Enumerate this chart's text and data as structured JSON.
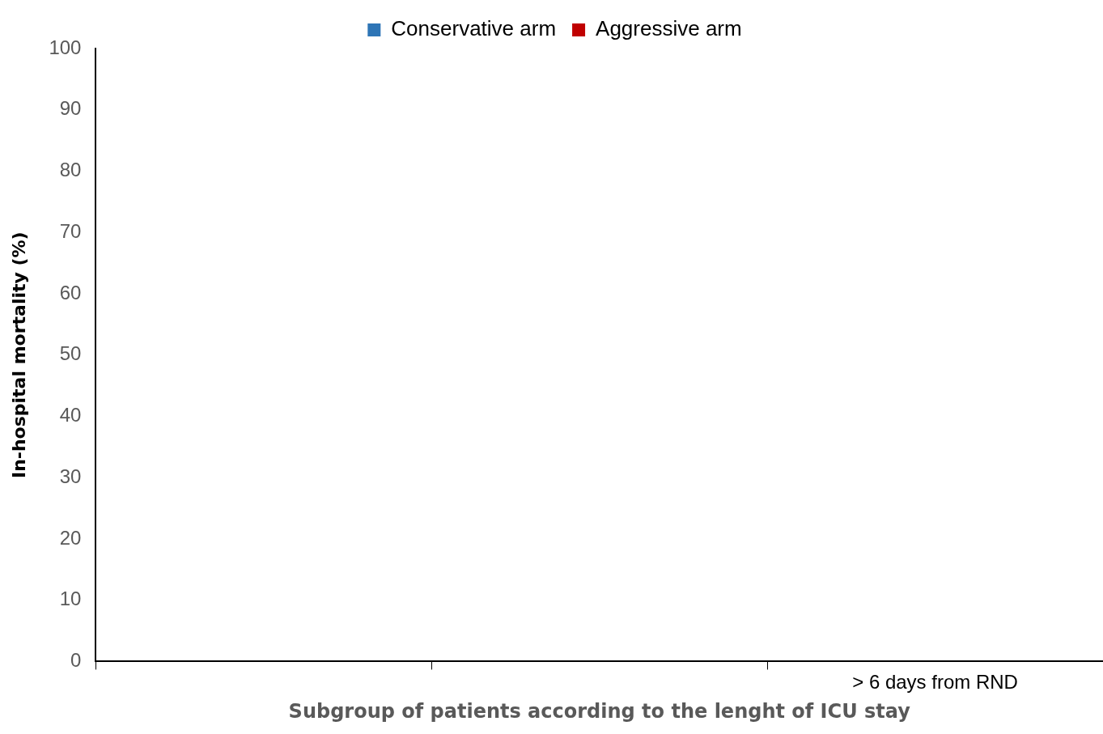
{
  "chart_data": {
    "type": "bar",
    "xlabel": "Subgroup of patients according to the lenght of ICU stay",
    "ylabel": "In-hospital mortality (%)",
    "categories": [
      null,
      null,
      "> 6 days from RND"
    ],
    "series": [
      {
        "name": "Conservative arm",
        "color": "#2e75b6",
        "values": [
          0,
          0,
          0
        ]
      },
      {
        "name": "Aggressive arm",
        "color": "#c00000",
        "values": [
          0,
          0,
          0
        ]
      }
    ],
    "ylim": [
      0,
      100
    ],
    "yticks": [
      0,
      10,
      20,
      30,
      40,
      50,
      60,
      70,
      80,
      90,
      100
    ],
    "grid": false,
    "legend": "top"
  }
}
